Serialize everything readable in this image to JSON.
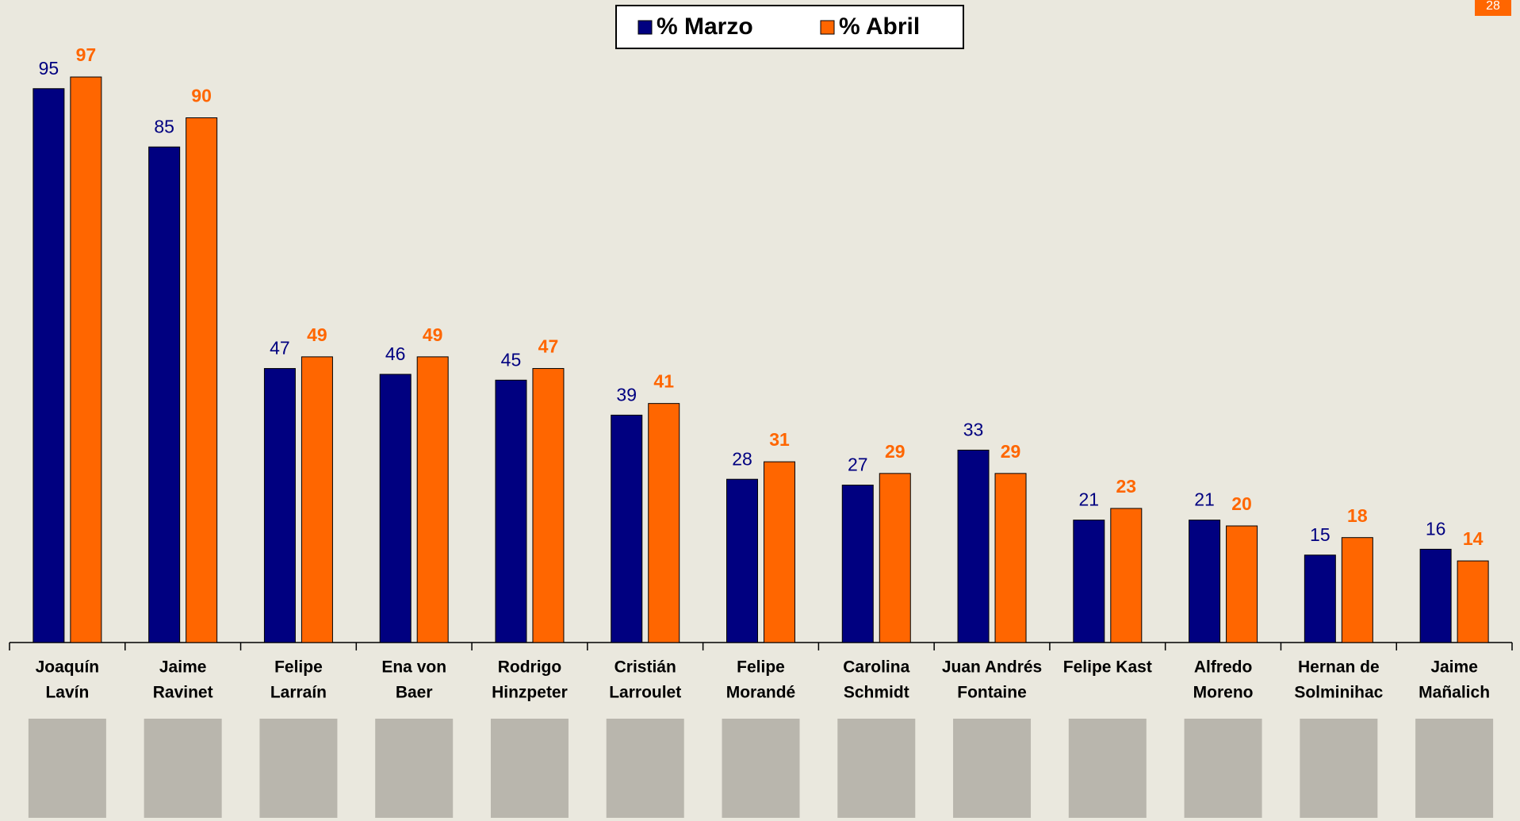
{
  "chart_data": {
    "type": "bar",
    "page_number": "28",
    "categories": [
      [
        "Joaquín",
        "Lavín"
      ],
      [
        "Jaime",
        "Ravinet"
      ],
      [
        "Felipe",
        "Larraín"
      ],
      [
        "Ena von",
        "Baer"
      ],
      [
        "Rodrigo",
        "Hinzpeter"
      ],
      [
        "Cristián",
        "Larroulet"
      ],
      [
        "Felipe",
        "Morandé"
      ],
      [
        "Carolina",
        "Schmidt"
      ],
      [
        "Juan Andrés",
        "Fontaine"
      ],
      [
        "Felipe Kast"
      ],
      [
        "Alfredo",
        "Moreno"
      ],
      [
        "Hernan de",
        "Solminihac"
      ],
      [
        "Jaime",
        "Mañalich"
      ]
    ],
    "series": [
      {
        "name": "% Marzo",
        "color": "#000080",
        "values": [
          95,
          85,
          47,
          46,
          45,
          39,
          28,
          27,
          33,
          21,
          21,
          15,
          16
        ]
      },
      {
        "name": "% Abril",
        "color": "#ff6600",
        "values": [
          97,
          90,
          49,
          49,
          47,
          41,
          31,
          29,
          29,
          23,
          20,
          18,
          14
        ]
      }
    ],
    "ylim": [
      0,
      100
    ],
    "legend": "top"
  }
}
